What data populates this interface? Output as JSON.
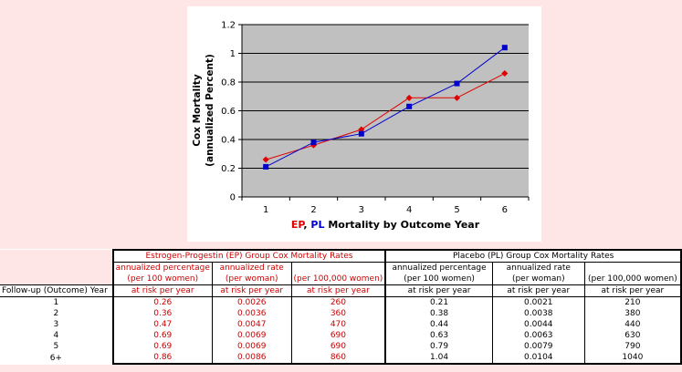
{
  "chart_data": {
    "type": "line",
    "x": [
      1,
      2,
      3,
      4,
      5,
      6
    ],
    "series": [
      {
        "name": "EP",
        "color": "#e00000",
        "marker": "diamond",
        "values": [
          0.26,
          0.36,
          0.47,
          0.69,
          0.69,
          0.86
        ]
      },
      {
        "name": "PL",
        "color": "#0000cc",
        "marker": "square",
        "values": [
          0.21,
          0.38,
          0.44,
          0.63,
          0.79,
          1.04
        ]
      }
    ],
    "ylabel_line1": "Cox Mortality",
    "ylabel_line2": "(annualized Percent)",
    "xlabel_ep": "EP",
    "xlabel_sep": ", ",
    "xlabel_pl": "PL",
    "xlabel_rest": " Mortality by Outcome Year",
    "xticks": [
      "1",
      "2",
      "3",
      "4",
      "5",
      "6"
    ],
    "yticks": [
      "0",
      "0.2",
      "0.4",
      "0.6",
      "0.8",
      "1",
      "1.2"
    ],
    "ylim": [
      0,
      1.2
    ],
    "xlim": [
      0.5,
      6.5
    ],
    "grid": true,
    "plot_background": "#c0c0c0"
  },
  "table": {
    "ep_group_title": "Estrogen-Progestin (EP) Group Cox Mortality Rates",
    "pl_group_title": "Placebo (PL) Group Cox Mortality Rates",
    "header_row1": [
      "annualized percentage",
      "annualized rate",
      ""
    ],
    "header_row2": [
      "(per 100 women)",
      "(per woman)",
      "(per 100,000 women)"
    ],
    "header_row3": [
      "at risk per year",
      "at risk per year",
      "at risk per year"
    ],
    "row_label_header": "Follow-up (Outcome) Year",
    "rows": [
      {
        "year": "1",
        "ep": [
          "0.26",
          "0.0026",
          "260"
        ],
        "pl": [
          "0.21",
          "0.0021",
          "210"
        ]
      },
      {
        "year": "2",
        "ep": [
          "0.36",
          "0.0036",
          "360"
        ],
        "pl": [
          "0.38",
          "0.0038",
          "380"
        ]
      },
      {
        "year": "3",
        "ep": [
          "0.47",
          "0.0047",
          "470"
        ],
        "pl": [
          "0.44",
          "0.0044",
          "440"
        ]
      },
      {
        "year": "4",
        "ep": [
          "0.69",
          "0.0069",
          "690"
        ],
        "pl": [
          "0.63",
          "0.0063",
          "630"
        ]
      },
      {
        "year": "5",
        "ep": [
          "0.69",
          "0.0069",
          "690"
        ],
        "pl": [
          "0.79",
          "0.0079",
          "790"
        ]
      },
      {
        "year": "6+",
        "ep": [
          "0.86",
          "0.0086",
          "860"
        ],
        "pl": [
          "1.04",
          "0.0104",
          "1040"
        ]
      }
    ]
  }
}
